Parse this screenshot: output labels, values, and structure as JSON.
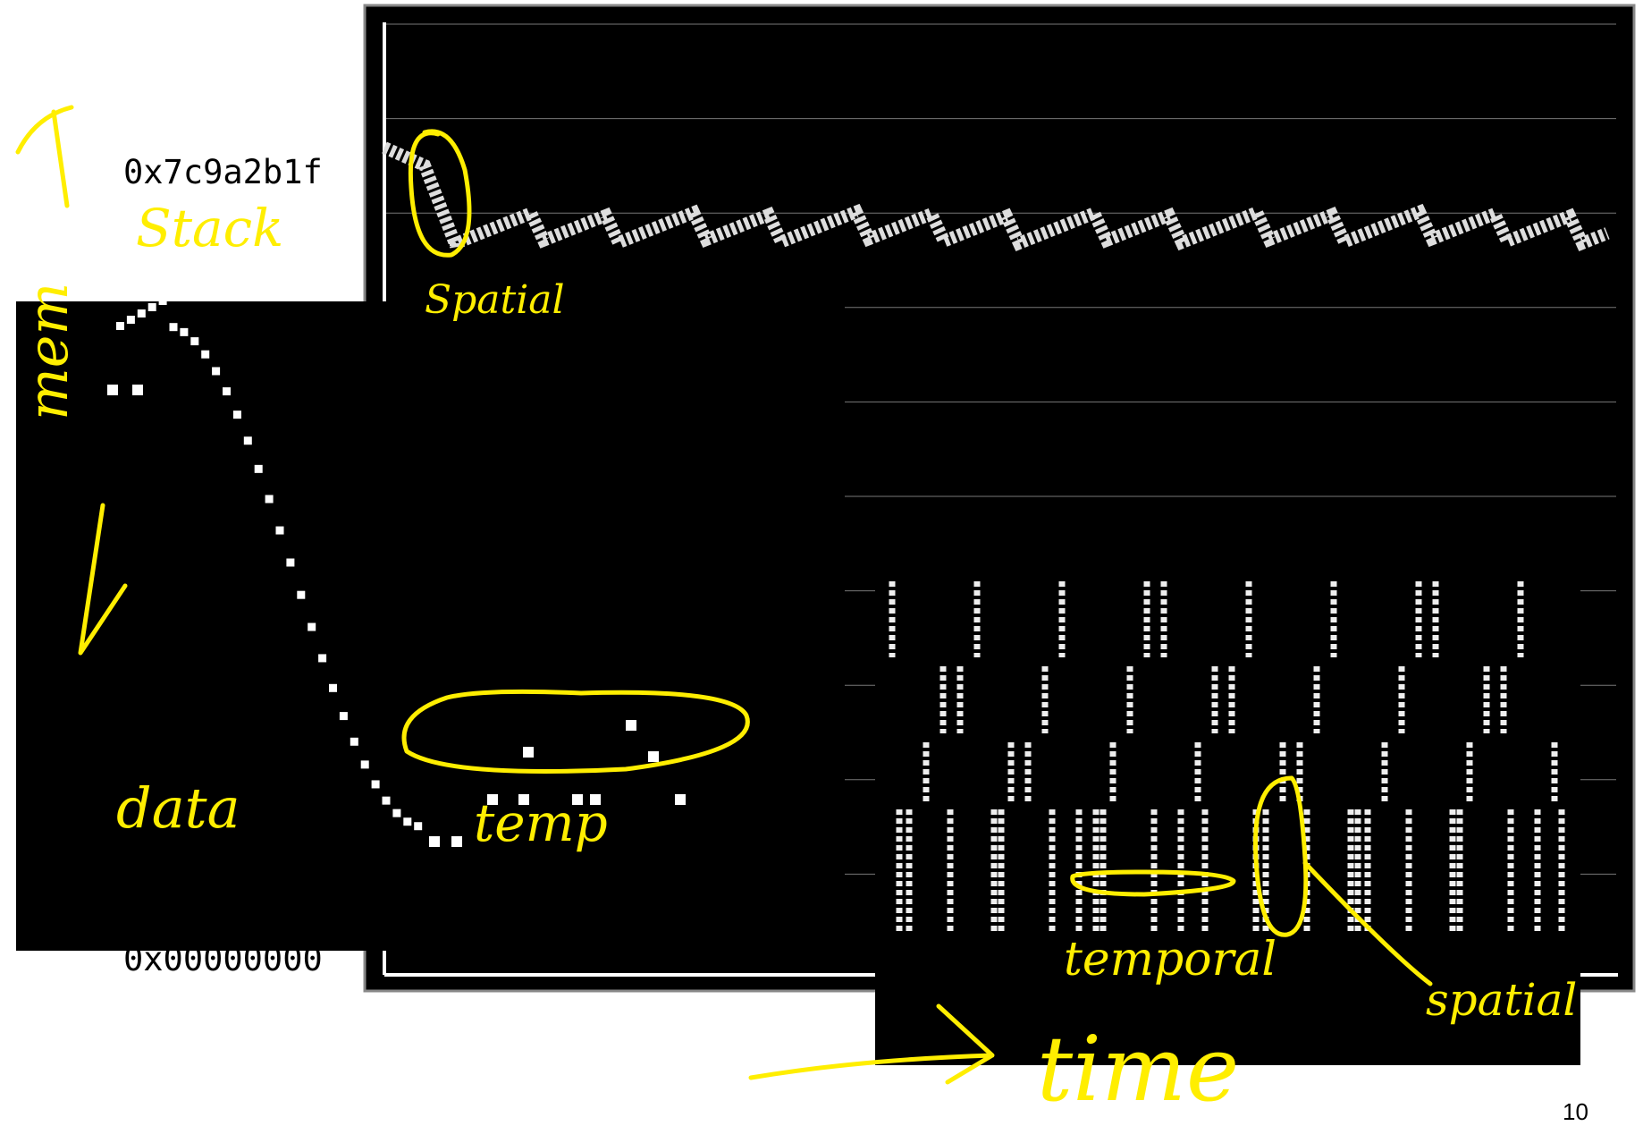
{
  "axis_labels": {
    "top": "0x7c9a2b1f",
    "bottom": "0x00000000"
  },
  "annotations": {
    "stack": "Stack",
    "spatial_top": "Spatial",
    "mem": "mem",
    "data": "data",
    "temp": "temp",
    "temporal": "temporal",
    "spatial_bottom": "spatial",
    "time": "time"
  },
  "page_number": "10"
}
